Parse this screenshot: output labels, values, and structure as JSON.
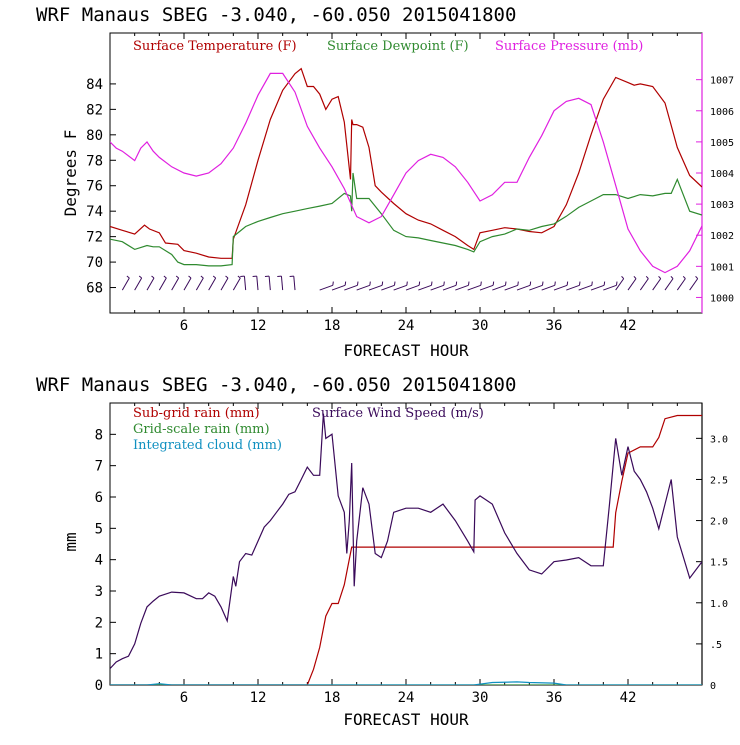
{
  "chart_data": [
    {
      "type": "line",
      "header": "WRF   Manaus SBEG   -3.040, -60.050  2015041800",
      "xlabel": "FORECAST HOUR",
      "ylabel": "Degrees F",
      "xlim": [
        0,
        48
      ],
      "ylim": [
        66,
        88
      ],
      "x_ticks": [
        6,
        12,
        18,
        24,
        30,
        36,
        42
      ],
      "y_ticks": [
        68,
        70,
        72,
        74,
        76,
        78,
        80,
        82,
        84
      ],
      "y2lim": [
        999.5,
        1008.5
      ],
      "y2_ticks": [
        1000,
        1001,
        1002,
        1003,
        1004,
        1005,
        1006,
        1007
      ],
      "series": [
        {
          "name": "Surface Temperature (F)",
          "color": "#b00000",
          "axis": "left",
          "x": [
            0,
            1,
            2,
            2.8,
            3.2,
            4,
            4.5,
            5.5,
            6,
            7,
            8,
            9,
            9.9,
            10,
            11,
            12,
            13,
            14,
            15,
            15.5,
            16,
            16.5,
            17,
            17.5,
            18,
            18.5,
            19,
            19.5,
            19.6,
            19.7,
            20,
            20.5,
            21,
            21.5,
            22,
            23,
            24,
            25,
            26,
            27,
            28,
            29,
            29.5,
            30,
            31,
            32,
            33,
            34,
            35,
            36,
            37,
            38,
            39,
            40,
            41,
            42,
            42.5,
            43,
            44,
            45,
            46,
            47,
            48
          ],
          "y": [
            72.8,
            72.5,
            72.2,
            72.9,
            72.6,
            72.3,
            71.5,
            71.4,
            70.9,
            70.7,
            70.4,
            70.3,
            70.3,
            71.8,
            74.5,
            78.0,
            81.2,
            83.5,
            84.8,
            85.2,
            83.8,
            83.8,
            83.2,
            82.0,
            82.8,
            83.0,
            81.0,
            76.5,
            81.2,
            80.8,
            80.8,
            80.6,
            79.0,
            76.0,
            75.5,
            74.6,
            73.8,
            73.3,
            73.0,
            72.5,
            72.0,
            71.3,
            71.0,
            72.3,
            72.5,
            72.7,
            72.6,
            72.4,
            72.3,
            72.8,
            74.5,
            77.0,
            80.0,
            82.8,
            84.5,
            84.1,
            83.9,
            84.0,
            83.8,
            82.5,
            79.0,
            76.8,
            75.9
          ]
        },
        {
          "name": "Surface Dewpoint (F)",
          "color": "#2f8a2f",
          "axis": "left",
          "x": [
            0,
            1,
            2,
            3,
            3.5,
            4,
            5,
            5.5,
            6,
            7,
            8,
            9,
            9.9,
            10,
            11,
            12,
            13,
            14,
            15,
            16,
            17,
            18,
            19,
            19.5,
            19.6,
            19.7,
            20,
            21,
            22,
            23,
            24,
            25,
            26,
            27,
            28,
            29,
            29.5,
            30,
            31,
            32,
            33,
            34,
            35,
            36,
            37,
            38,
            39,
            40,
            40.5,
            41,
            42,
            43,
            44,
            45,
            45.5,
            46,
            47,
            48
          ],
          "y": [
            71.8,
            71.6,
            71.0,
            71.3,
            71.2,
            71.2,
            70.6,
            70.0,
            69.8,
            69.8,
            69.7,
            69.7,
            69.8,
            72.0,
            72.8,
            73.2,
            73.5,
            73.8,
            74.0,
            74.2,
            74.4,
            74.6,
            75.4,
            75.2,
            74.0,
            77.0,
            75.0,
            75.0,
            73.8,
            72.5,
            72.0,
            71.9,
            71.7,
            71.5,
            71.3,
            71.0,
            70.8,
            71.6,
            72.0,
            72.2,
            72.6,
            72.5,
            72.8,
            73.0,
            73.6,
            74.3,
            74.8,
            75.3,
            75.3,
            75.3,
            75.0,
            75.3,
            75.2,
            75.4,
            75.4,
            76.5,
            74.0,
            73.7
          ]
        },
        {
          "name": "Surface Pressure (mb)",
          "color": "#e020e0",
          "axis": "right",
          "x": [
            0,
            0.5,
            1,
            2,
            2.5,
            3,
            3.5,
            4,
            5,
            6,
            7,
            8,
            9,
            10,
            11,
            12,
            13,
            14,
            15,
            16,
            17,
            18,
            19,
            20,
            21,
            22,
            23,
            24,
            25,
            26,
            27,
            28,
            29,
            30,
            31,
            32,
            33,
            34,
            35,
            36,
            37,
            38,
            39,
            40,
            41,
            42,
            43,
            44,
            45,
            46,
            47,
            48
          ],
          "y": [
            1005.0,
            1004.8,
            1004.7,
            1004.4,
            1004.8,
            1005.0,
            1004.7,
            1004.5,
            1004.2,
            1004.0,
            1003.9,
            1004.0,
            1004.3,
            1004.8,
            1005.6,
            1006.5,
            1007.2,
            1007.2,
            1006.6,
            1005.5,
            1004.8,
            1004.2,
            1003.5,
            1002.6,
            1002.4,
            1002.6,
            1003.3,
            1004.0,
            1004.4,
            1004.6,
            1004.5,
            1004.2,
            1003.7,
            1003.1,
            1003.3,
            1003.7,
            1003.7,
            1004.5,
            1005.2,
            1006.0,
            1006.3,
            1006.4,
            1006.2,
            1005.0,
            1003.6,
            1002.2,
            1001.5,
            1001.0,
            1000.8,
            1001.0,
            1001.5,
            1002.3
          ]
        }
      ]
    },
    {
      "type": "line",
      "header": "WRF   Manaus SBEG   -3.040, -60.050  2015041800",
      "xlabel": "FORECAST HOUR",
      "ylabel": "mm",
      "xlim": [
        0,
        48
      ],
      "ylim": [
        0,
        9
      ],
      "x_ticks": [
        6,
        12,
        18,
        24,
        30,
        36,
        42
      ],
      "y_ticks": [
        0,
        1,
        2,
        3,
        4,
        5,
        6,
        7,
        8
      ],
      "y2lim": [
        0,
        3.43
      ],
      "y2_ticks": [
        "0",
        ".5",
        "1.0",
        "1.5",
        "2.0",
        "2.5",
        "3.0"
      ],
      "series": [
        {
          "name": "Sub-grid rain (mm)",
          "color": "#b00000",
          "axis": "left",
          "x": [
            0,
            16,
            16.5,
            17,
            17.5,
            18,
            18.5,
            19,
            19.3,
            19.6,
            20,
            22,
            30,
            35,
            38,
            40.8,
            41,
            41.5,
            42,
            43,
            44,
            44.5,
            45,
            46,
            48
          ],
          "y": [
            0,
            0,
            0.5,
            1.2,
            2.2,
            2.6,
            2.6,
            3.2,
            3.8,
            4.4,
            4.4,
            4.4,
            4.4,
            4.4,
            4.4,
            4.4,
            5.5,
            6.5,
            7.4,
            7.6,
            7.6,
            7.9,
            8.5,
            8.6,
            8.6
          ]
        },
        {
          "name": "Grid-scale rain (mm)",
          "color": "#2f8a2f",
          "axis": "left",
          "x": [
            0,
            48
          ],
          "y": [
            0,
            0
          ]
        },
        {
          "name": "Integrated cloud (mm)",
          "color": "#1090c0",
          "axis": "left",
          "x": [
            0,
            3,
            4,
            5,
            29.5,
            31,
            33,
            34,
            36,
            37,
            48
          ],
          "y": [
            0,
            0,
            0.04,
            0,
            0,
            0.08,
            0.1,
            0.08,
            0.06,
            0,
            0
          ]
        },
        {
          "name": "Surface Wind Speed (m/s)",
          "color": "#3a0a5a",
          "axis": "right",
          "x": [
            0,
            0.5,
            1,
            1.5,
            2,
            2.5,
            3,
            3.5,
            4,
            5,
            6,
            7,
            7.5,
            8,
            8.5,
            9,
            9.5,
            10,
            10.2,
            10.5,
            11,
            11.5,
            12,
            12.5,
            13,
            13.5,
            14,
            14.5,
            15,
            15.5,
            16,
            16.5,
            17,
            17.3,
            17.5,
            18,
            18.5,
            19,
            19.2,
            19.4,
            19.6,
            19.8,
            20,
            20.5,
            21,
            21.5,
            22,
            22.5,
            23,
            24,
            25,
            26,
            27,
            28,
            29,
            29.5,
            29.6,
            30,
            30.5,
            31,
            32,
            33,
            34,
            35,
            36,
            37,
            38,
            39,
            40,
            40.5,
            41,
            41.5,
            42,
            42.5,
            43,
            43.5,
            44,
            44.5,
            45,
            45.5,
            46,
            47,
            48
          ],
          "y": [
            0.2,
            0.28,
            0.32,
            0.35,
            0.5,
            0.75,
            0.95,
            1.02,
            1.08,
            1.13,
            1.12,
            1.05,
            1.05,
            1.12,
            1.08,
            0.95,
            0.78,
            1.32,
            1.2,
            1.5,
            1.6,
            1.58,
            1.75,
            1.92,
            2.0,
            2.1,
            2.2,
            2.32,
            2.35,
            2.5,
            2.65,
            2.55,
            2.55,
            3.3,
            3.0,
            3.05,
            2.3,
            2.1,
            1.6,
            2.0,
            2.7,
            1.2,
            1.75,
            2.4,
            2.2,
            1.6,
            1.55,
            1.75,
            2.1,
            2.15,
            2.15,
            2.1,
            2.2,
            2.0,
            1.75,
            1.62,
            2.25,
            2.3,
            2.25,
            2.2,
            1.85,
            1.6,
            1.4,
            1.35,
            1.5,
            1.52,
            1.55,
            1.45,
            1.45,
            2.2,
            3.0,
            2.55,
            2.9,
            2.6,
            2.5,
            2.35,
            2.15,
            1.9,
            2.2,
            2.5,
            1.8,
            1.3,
            1.5
          ]
        }
      ]
    }
  ],
  "wind_barbs": {
    "segments": [
      {
        "x_start": 1,
        "x_end": 11,
        "step": 1,
        "direction_deg": 60,
        "color": "#3a0a5a"
      },
      {
        "x_start": 11,
        "x_end": 16,
        "step": 1,
        "direction_deg": 95,
        "color": "#3a0a5a"
      },
      {
        "x_start": 17,
        "x_end": 41,
        "step": 1,
        "direction_deg": 20,
        "color": "#3a0a5a"
      },
      {
        "x_start": 41,
        "x_end": 48,
        "step": 1,
        "direction_deg": 55,
        "color": "#3a0a5a"
      }
    ]
  }
}
